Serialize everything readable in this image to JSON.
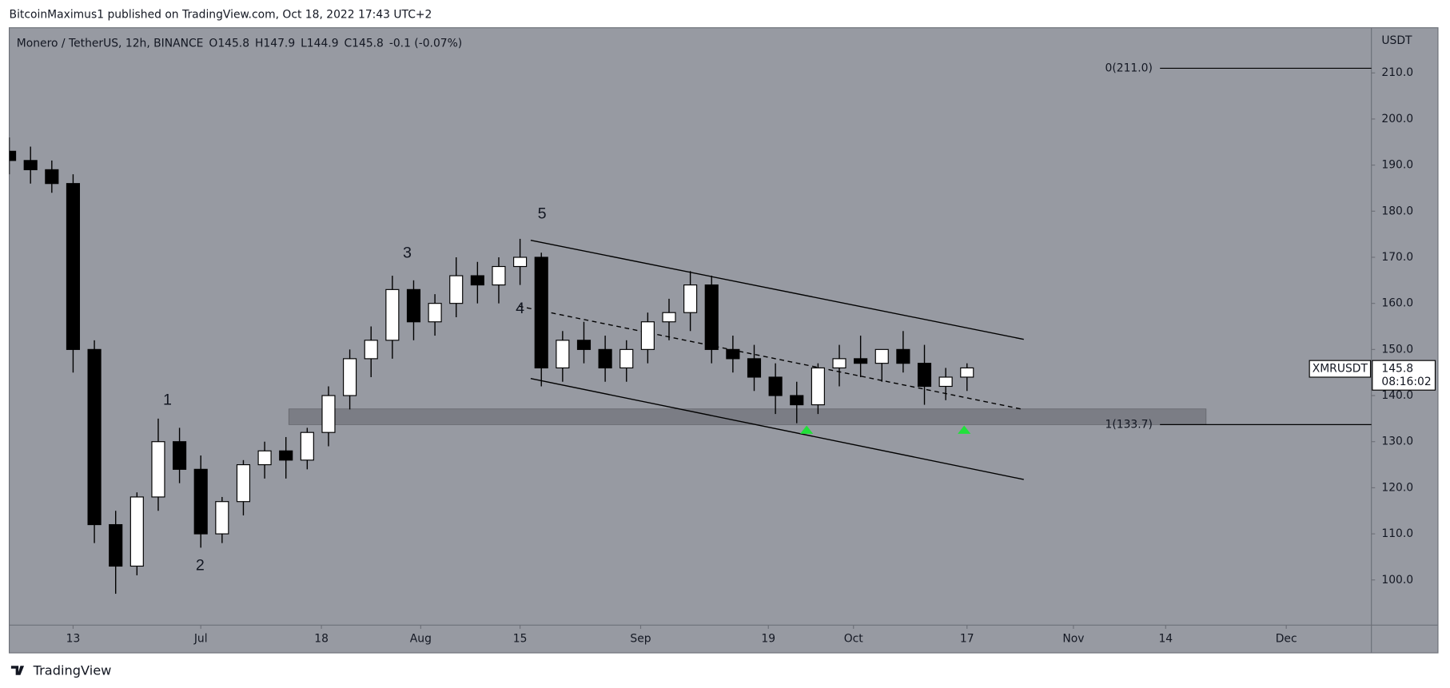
{
  "header": {
    "publisher": "BitcoinMaximus1 published on TradingView.com, Oct 18, 2022 17:43 UTC+2"
  },
  "footer": {
    "brand": "TradingView"
  },
  "chart_data": {
    "type": "candlestick",
    "legend": {
      "symbol": "Monero / TetherUS, 12h, BINANCE",
      "ohlc": [
        "O145.8",
        "H147.9",
        "L144.9",
        "C145.8",
        "-0.1 (-0.07%)"
      ]
    },
    "y_axis_unit": "USDT",
    "ticker": "XMRUSDT",
    "last_price": 145.8,
    "countdown": "08:16:02",
    "colors": {
      "up": "#ffffff",
      "down": "#000000",
      "wick": "#000000",
      "marker": "#22e03a",
      "zone": "#7b7d85"
    },
    "x": [
      -9,
      -6,
      -3,
      0,
      3,
      6,
      9,
      12,
      15,
      18,
      21,
      24,
      27,
      30,
      33,
      36,
      39,
      42,
      45,
      48,
      51,
      54,
      57,
      60,
      63,
      66,
      69,
      72,
      75,
      78,
      81,
      84,
      87,
      90,
      93,
      96,
      99,
      102,
      105,
      108,
      111,
      114,
      117,
      120,
      123,
      126
    ],
    "open": [
      193,
      191,
      189,
      186,
      150,
      112,
      103,
      118,
      130,
      124,
      110,
      117,
      125,
      128,
      126,
      132,
      140,
      148,
      152,
      163,
      156,
      160,
      166,
      164,
      168,
      170,
      146,
      152,
      150,
      146,
      150,
      156,
      158,
      164,
      150,
      148,
      144,
      140,
      138,
      146,
      148,
      147,
      150,
      147,
      142,
      144
    ],
    "high": [
      196,
      194,
      191,
      188,
      152,
      115,
      119,
      135,
      133,
      127,
      118,
      126,
      130,
      131,
      133,
      142,
      150,
      155,
      166,
      165,
      162,
      170,
      169,
      170,
      174,
      171,
      154,
      156,
      153,
      152,
      158,
      161,
      167,
      166,
      153,
      151,
      147,
      143,
      147,
      151,
      153,
      150,
      154,
      151,
      146,
      147
    ],
    "low": [
      188,
      186,
      184,
      145,
      108,
      97,
      101,
      115,
      121,
      107,
      108,
      114,
      122,
      122,
      124,
      129,
      137,
      144,
      148,
      152,
      153,
      157,
      160,
      160,
      164,
      142,
      143,
      147,
      143,
      143,
      147,
      152,
      154,
      147,
      145,
      141,
      136,
      134,
      136,
      142,
      144,
      143,
      145,
      138,
      139,
      141
    ],
    "close": [
      191,
      189,
      186,
      150,
      112,
      103,
      118,
      130,
      124,
      110,
      117,
      125,
      128,
      126,
      132,
      140,
      148,
      152,
      163,
      156,
      160,
      166,
      164,
      168,
      170,
      146,
      152,
      150,
      146,
      150,
      156,
      158,
      164,
      150,
      148,
      144,
      140,
      138,
      146,
      148,
      147,
      150,
      147,
      142,
      144,
      146
    ],
    "xlim": [
      -9,
      183
    ],
    "xticks": [
      {
        "value": 0,
        "label": "13"
      },
      {
        "value": 18,
        "label": "Jul"
      },
      {
        "value": 35,
        "label": "18"
      },
      {
        "value": 49,
        "label": "Aug"
      },
      {
        "value": 63,
        "label": "15"
      },
      {
        "value": 80,
        "label": "Sep"
      },
      {
        "value": 98,
        "label": "19"
      },
      {
        "value": 110,
        "label": "Oct"
      },
      {
        "value": 126,
        "label": "17"
      },
      {
        "value": 141,
        "label": "Nov"
      },
      {
        "value": 154,
        "label": "14"
      },
      {
        "value": 171,
        "label": "Dec"
      }
    ],
    "ylim": [
      90.2,
      219.8
    ],
    "yticks": [
      {
        "value": 100,
        "label": "100.0"
      },
      {
        "value": 110,
        "label": "110.0"
      },
      {
        "value": 120,
        "label": "120.0"
      },
      {
        "value": 130,
        "label": "130.0"
      },
      {
        "value": 140,
        "label": "140.0"
      },
      {
        "value": 150,
        "label": "150.0"
      },
      {
        "value": 160,
        "label": "160.0"
      },
      {
        "value": 170,
        "label": "170.0"
      },
      {
        "value": 180,
        "label": "180.0"
      },
      {
        "value": 190,
        "label": "190.0"
      },
      {
        "value": 200,
        "label": "200.0"
      },
      {
        "value": 210,
        "label": "210.0"
      }
    ],
    "trendlines": [
      {
        "style": "solid",
        "points": [
          [
            64.5,
            173.7
          ],
          [
            134,
            152.2
          ]
        ]
      },
      {
        "style": "solid",
        "points": [
          [
            64.5,
            143.7
          ],
          [
            134,
            121.8
          ]
        ]
      },
      {
        "style": "dashed",
        "points": [
          [
            62.8,
            159.4
          ],
          [
            133.6,
            137.1
          ]
        ]
      }
    ],
    "zone": {
      "x": [
        30.4,
        159.7
      ],
      "y": [
        133.7,
        137.1
      ]
    },
    "fib": {
      "x_start": 153.2,
      "levels": [
        {
          "label": "0(211.0)",
          "value": 211.0
        },
        {
          "label": "1(133.7)",
          "value": 133.7
        }
      ]
    },
    "wave_labels": [
      {
        "label": "1",
        "x": 13.3,
        "y": 138.9
      },
      {
        "label": "2",
        "x": 17.9,
        "y": 103
      },
      {
        "label": "3",
        "x": 47.1,
        "y": 170.8
      },
      {
        "label": "4",
        "x": 63,
        "y": 158.8
      },
      {
        "label": "5",
        "x": 66.1,
        "y": 179.3
      }
    ],
    "markers": [
      {
        "x": 103.4,
        "y": 132.5
      },
      {
        "x": 125.6,
        "y": 132.5
      }
    ]
  }
}
